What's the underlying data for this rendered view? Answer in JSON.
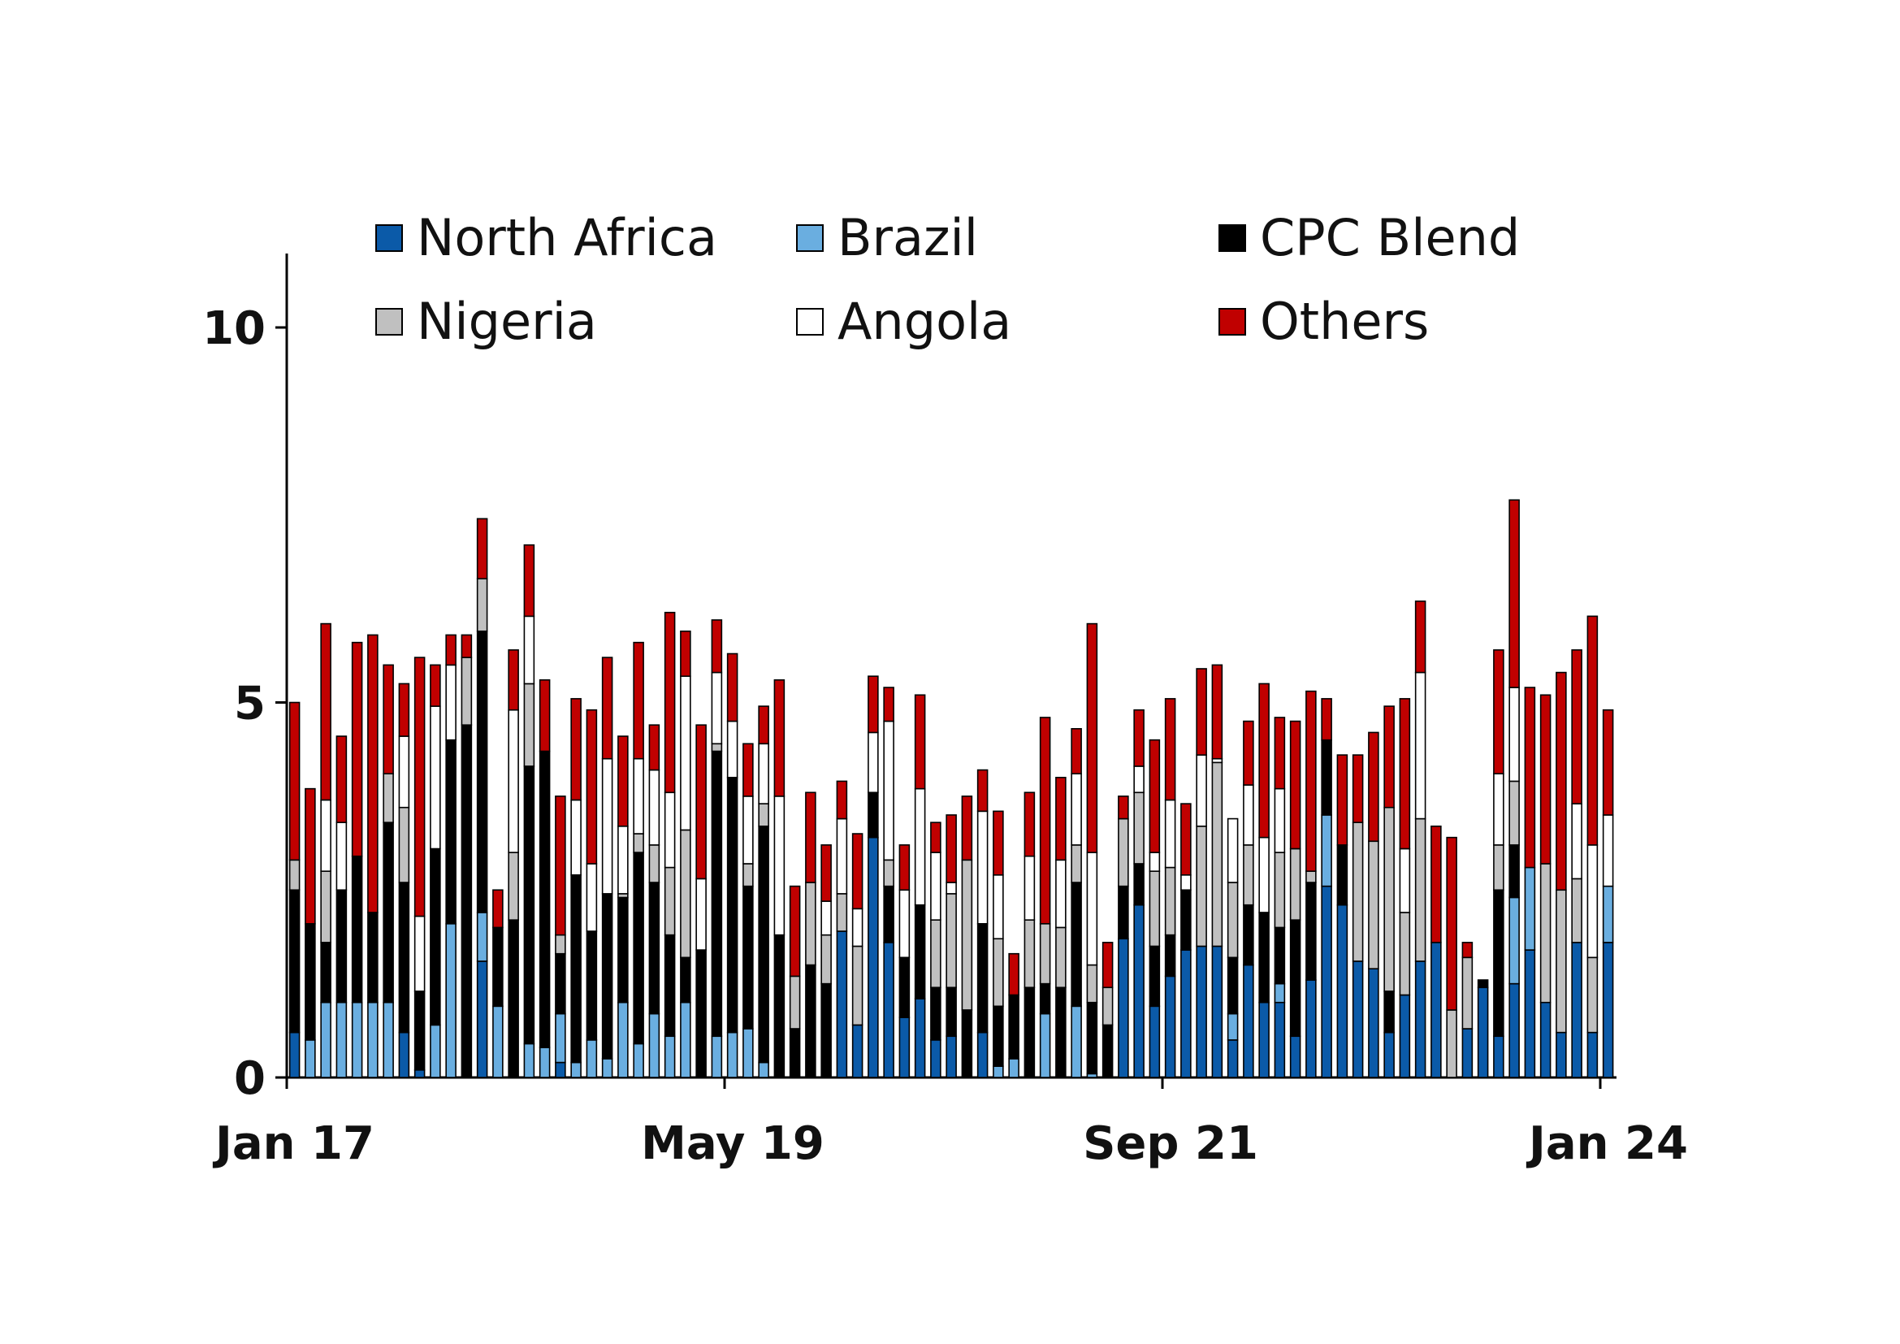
{
  "chart_data": {
    "type": "bar",
    "stacked": true,
    "title": "",
    "xlabel": "",
    "ylabel": "",
    "ylim": [
      0,
      11
    ],
    "yticks": [
      0,
      5,
      10
    ],
    "x_ticks": [
      "Jan 17",
      "May 19",
      "Sep 21",
      "Jan 24"
    ],
    "x_range": [
      "2017-01",
      "2024-01"
    ],
    "grid": false,
    "legend_position": "top",
    "x": [
      "2017-01",
      "2017-02",
      "2017-03",
      "2017-04",
      "2017-05",
      "2017-06",
      "2017-07",
      "2017-08",
      "2017-09",
      "2017-10",
      "2017-11",
      "2017-12",
      "2018-01",
      "2018-02",
      "2018-03",
      "2018-04",
      "2018-05",
      "2018-06",
      "2018-07",
      "2018-08",
      "2018-09",
      "2018-10",
      "2018-11",
      "2018-12",
      "2019-01",
      "2019-02",
      "2019-03",
      "2019-04",
      "2019-05",
      "2019-06",
      "2019-07",
      "2019-08",
      "2019-09",
      "2019-10",
      "2019-11",
      "2019-12",
      "2020-01",
      "2020-02",
      "2020-03",
      "2020-04",
      "2020-05",
      "2020-06",
      "2020-07",
      "2020-08",
      "2020-09",
      "2020-10",
      "2020-11",
      "2020-12",
      "2021-01",
      "2021-02",
      "2021-03",
      "2021-04",
      "2021-05",
      "2021-06",
      "2021-07",
      "2021-08",
      "2021-09",
      "2021-10",
      "2021-11",
      "2021-12",
      "2022-01",
      "2022-02",
      "2022-03",
      "2022-04",
      "2022-05",
      "2022-06",
      "2022-07",
      "2022-08",
      "2022-09",
      "2022-10",
      "2022-11",
      "2022-12",
      "2023-01",
      "2023-02",
      "2023-03",
      "2023-04",
      "2023-05",
      "2023-06",
      "2023-07",
      "2023-08",
      "2023-09",
      "2023-10",
      "2023-11",
      "2023-12",
      "2024-01"
    ],
    "series": [
      {
        "name": "North Africa",
        "color": "#0b5aa8",
        "values": [
          0.6,
          0,
          0,
          0,
          0,
          0,
          0,
          0.6,
          0.1,
          0,
          0,
          0,
          1.55,
          0,
          0,
          0,
          0,
          0.2,
          0,
          0,
          0,
          0,
          0,
          0,
          0,
          0,
          0,
          0,
          0,
          0,
          0,
          0,
          0,
          0,
          0,
          1.95,
          0.7,
          3.2,
          1.8,
          0.8,
          1.05,
          0.5,
          0.55,
          0,
          0.6,
          0,
          0,
          0,
          0,
          0,
          0,
          0,
          0,
          1.85,
          2.3,
          0.95,
          1.35,
          1.7,
          1.75,
          1.75,
          0.5,
          1.5,
          1.0,
          1.0,
          0.55,
          1.3,
          2.55,
          2.3,
          1.55,
          1.45,
          0.6,
          1.1,
          1.55,
          1.8,
          0,
          0.65,
          1.2,
          0.55,
          1.25,
          1.7,
          1.0,
          0.6,
          1.8,
          0.6,
          1.8
        ]
      },
      {
        "name": "Brazil",
        "color": "#6aaee0",
        "values": [
          0,
          0.5,
          1.0,
          1.0,
          1.0,
          1.0,
          1.0,
          0,
          0,
          0.7,
          2.05,
          0,
          0.65,
          0.95,
          0,
          0.45,
          0.4,
          0.65,
          0.2,
          0.5,
          0.25,
          1.0,
          0.45,
          0.85,
          0.55,
          1.0,
          0,
          0.55,
          0.6,
          0.65,
          0.2,
          0,
          0,
          0,
          0,
          0,
          0,
          0,
          0,
          0,
          0,
          0,
          0,
          0,
          0,
          0.15,
          0.25,
          0,
          0.85,
          0,
          0.95,
          0.05,
          0,
          0,
          0,
          0,
          0,
          0,
          0,
          0,
          0.35,
          0,
          0,
          0.25,
          0,
          0,
          0.95,
          0,
          0,
          0,
          0,
          0,
          0,
          0,
          0,
          0,
          0,
          0,
          1.15,
          1.1,
          0,
          0,
          0,
          0,
          0.75
        ]
      },
      {
        "name": "CPC Blend",
        "color": "#000000",
        "values": [
          1.9,
          1.55,
          0.8,
          1.5,
          1.95,
          1.2,
          2.4,
          2.0,
          1.05,
          2.35,
          2.45,
          4.7,
          3.75,
          1.05,
          2.1,
          3.7,
          3.95,
          0.8,
          2.5,
          1.45,
          2.2,
          1.4,
          2.55,
          1.75,
          1.35,
          0.6,
          1.7,
          3.8,
          3.4,
          1.9,
          3.15,
          1.9,
          0.65,
          1.5,
          1.25,
          0,
          0,
          0.6,
          0.75,
          0.8,
          1.25,
          0.7,
          0.65,
          0.9,
          1.45,
          0.8,
          0.85,
          1.2,
          0.4,
          1.2,
          1.65,
          0.95,
          0.7,
          0.7,
          0.55,
          0.8,
          0.55,
          0.8,
          0,
          0,
          0.75,
          0.8,
          1.2,
          0.75,
          1.55,
          1.3,
          1.0,
          0.8,
          0,
          0,
          0.55,
          0,
          0,
          0,
          0,
          0,
          0.1,
          1.95,
          0.7,
          0,
          0,
          0,
          0,
          0,
          0
        ]
      },
      {
        "name": "Nigeria",
        "color": "#c0c0c0",
        "values": [
          0.4,
          0,
          0.95,
          0,
          0,
          0,
          0.65,
          1.0,
          0,
          0,
          0,
          0.9,
          0.7,
          0,
          0.9,
          1.1,
          0,
          0.25,
          0,
          0,
          0,
          0.05,
          0.25,
          0.5,
          0.9,
          1.7,
          0,
          0.1,
          0,
          0.3,
          0.3,
          0,
          0.7,
          1.1,
          0.65,
          0.5,
          1.05,
          0,
          0.35,
          0,
          0,
          0.9,
          1.25,
          2.0,
          0,
          0.9,
          0,
          0.9,
          0.8,
          0.8,
          0.5,
          0.5,
          0.5,
          0.9,
          0.95,
          1.0,
          0.9,
          0,
          1.6,
          2.45,
          1.0,
          0.8,
          0,
          1.0,
          0.95,
          0.15,
          0,
          0,
          1.85,
          1.7,
          2.45,
          1.1,
          1.9,
          0,
          0.9,
          0.95,
          0,
          0.6,
          0.85,
          0,
          1.85,
          1.9,
          0.85,
          1.0,
          0
        ]
      },
      {
        "name": "Angola",
        "color": "#ffffff",
        "values": [
          0,
          0,
          0.95,
          0.9,
          0,
          0,
          0,
          0.95,
          1.0,
          1.9,
          1.0,
          0,
          0,
          0,
          1.9,
          0.9,
          0,
          0,
          1.0,
          0.9,
          1.8,
          0.9,
          1.0,
          1.0,
          1.0,
          2.05,
          0.95,
          0.95,
          0.75,
          0.9,
          0.8,
          1.85,
          0,
          0,
          0.45,
          1.0,
          0.5,
          0.8,
          1.85,
          0.9,
          1.55,
          0.9,
          0.15,
          0,
          1.5,
          0.85,
          0,
          0.85,
          0,
          0.9,
          0.95,
          1.5,
          0,
          0,
          0.35,
          0.25,
          0.9,
          0.2,
          0.95,
          0.05,
          0.85,
          0.8,
          1.0,
          0.85,
          0,
          0,
          0,
          0,
          0,
          0,
          0,
          0.85,
          1.95,
          0,
          0,
          0,
          0,
          0.95,
          1.25,
          0,
          0,
          0,
          1.0,
          1.5,
          0.95
        ]
      },
      {
        "name": "Others",
        "color": "#c00000",
        "values": [
          2.1,
          1.8,
          2.35,
          1.15,
          2.85,
          3.7,
          1.45,
          0.7,
          3.45,
          0.55,
          0.4,
          0.3,
          0.8,
          0.5,
          0.8,
          0.95,
          0.95,
          1.85,
          1.35,
          2.05,
          1.35,
          1.2,
          1.55,
          0.6,
          2.4,
          0.6,
          2.05,
          0.7,
          0.9,
          0.7,
          0.5,
          1.55,
          1.2,
          1.2,
          0.75,
          0.5,
          1.0,
          0.75,
          0.45,
          0.6,
          1.25,
          0.4,
          0.9,
          0.85,
          0.55,
          0.85,
          0.55,
          0.85,
          2.75,
          1.1,
          0.6,
          3.05,
          0.6,
          0.3,
          0.75,
          1.5,
          1.35,
          0.95,
          1.15,
          1.25,
          0,
          0.85,
          2.05,
          0.95,
          1.7,
          2.4,
          0.55,
          1.2,
          0.9,
          1.45,
          1.35,
          2.0,
          0.95,
          1.55,
          2.3,
          0.2,
          0,
          1.65,
          2.5,
          2.4,
          2.25,
          2.9,
          2.05,
          3.05,
          1.4
        ]
      }
    ]
  }
}
